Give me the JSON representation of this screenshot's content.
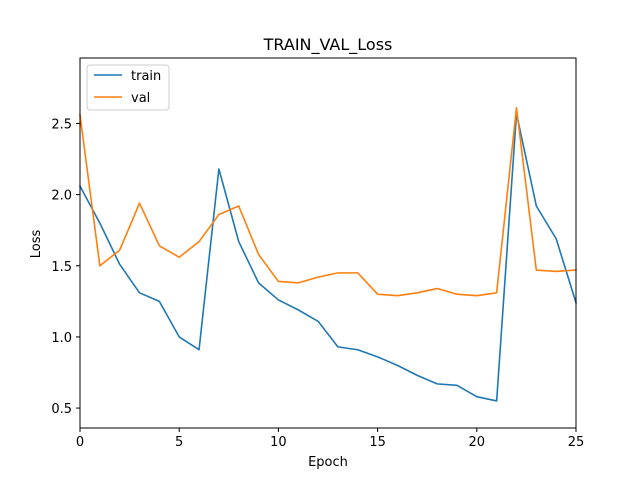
{
  "chart_data": {
    "type": "line",
    "title": "TRAIN_VAL_Loss",
    "xlabel": "Epoch",
    "ylabel": "Loss",
    "xlim": [
      0,
      25
    ],
    "ylim": [
      0.36,
      2.96
    ],
    "xticks": [
      0,
      5,
      10,
      15,
      20,
      25
    ],
    "yticks": [
      0.5,
      1.0,
      1.5,
      2.0,
      2.5
    ],
    "xtick_labels": [
      "0",
      "5",
      "10",
      "15",
      "20",
      "25"
    ],
    "ytick_labels": [
      "0.5",
      "1.0",
      "1.5",
      "2.0",
      "2.5"
    ],
    "grid": false,
    "legend_position": "upper-left",
    "x": [
      0,
      1,
      2,
      3,
      4,
      5,
      6,
      7,
      8,
      9,
      10,
      11,
      12,
      13,
      14,
      15,
      16,
      17,
      18,
      19,
      20,
      21,
      22,
      23,
      24,
      25
    ],
    "series": [
      {
        "name": "train",
        "color": "#1f77b4",
        "values": [
          2.06,
          1.8,
          1.51,
          1.31,
          1.25,
          1.0,
          0.91,
          2.18,
          1.67,
          1.38,
          1.26,
          1.19,
          1.11,
          0.93,
          0.91,
          0.86,
          0.8,
          0.73,
          0.67,
          0.66,
          0.58,
          0.55,
          2.57,
          1.92,
          1.69,
          1.24
        ]
      },
      {
        "name": "val",
        "color": "#ff7f0e",
        "values": [
          2.56,
          1.5,
          1.61,
          1.94,
          1.64,
          1.56,
          1.67,
          1.86,
          1.92,
          1.58,
          1.39,
          1.38,
          1.42,
          1.45,
          1.45,
          1.3,
          1.29,
          1.31,
          1.34,
          1.3,
          1.29,
          1.31,
          2.61,
          1.47,
          1.46,
          1.47
        ]
      }
    ]
  }
}
